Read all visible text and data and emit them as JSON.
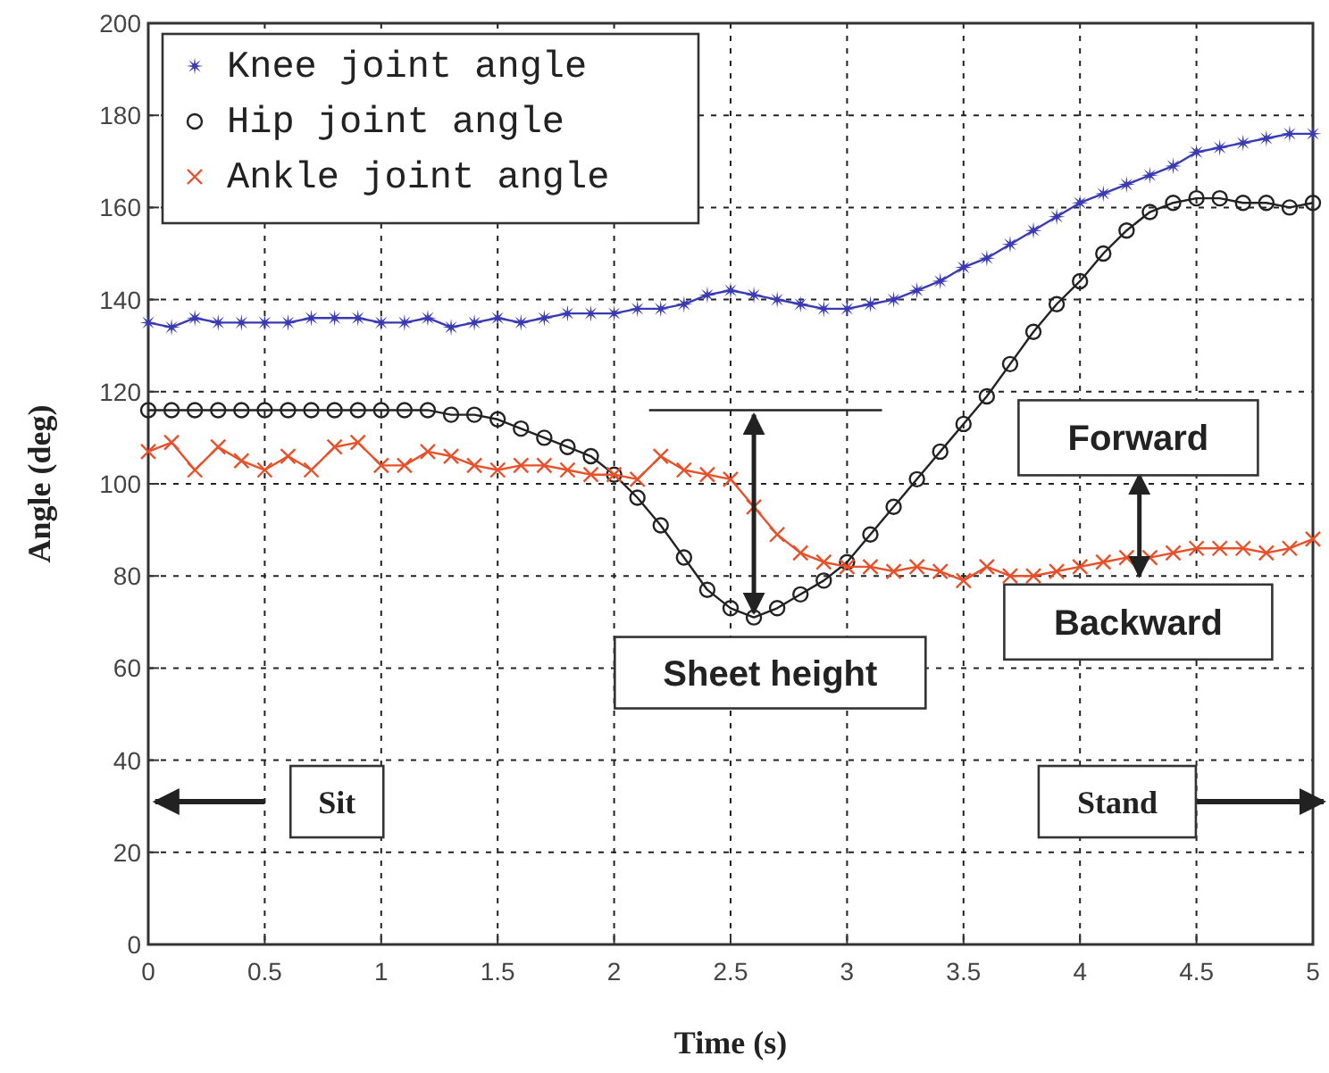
{
  "chart_data": {
    "type": "line",
    "xlabel": "Time (s)",
    "ylabel": "Angle (deg)",
    "xlim": [
      0,
      5
    ],
    "ylim": [
      0,
      200
    ],
    "xticks": [
      0,
      0.5,
      1,
      1.5,
      2,
      2.5,
      3,
      3.5,
      4,
      4.5,
      5
    ],
    "yticks": [
      0,
      20,
      40,
      60,
      80,
      100,
      120,
      140,
      160,
      180,
      200
    ],
    "grid": true,
    "legend": "top left",
    "x": [
      0,
      0.1,
      0.2,
      0.3,
      0.4,
      0.5,
      0.6,
      0.7,
      0.8,
      0.9,
      1,
      1.1,
      1.2,
      1.3,
      1.4,
      1.5,
      1.6,
      1.7,
      1.8,
      1.9,
      2,
      2.1,
      2.2,
      2.3,
      2.4,
      2.5,
      2.6,
      2.7,
      2.8,
      2.9,
      3,
      3.1,
      3.2,
      3.3,
      3.4,
      3.5,
      3.6,
      3.7,
      3.8,
      3.9,
      4,
      4.1,
      4.2,
      4.3,
      4.4,
      4.5,
      4.6,
      4.7,
      4.8,
      4.9,
      5
    ],
    "series": [
      {
        "name": "Knee joint angle",
        "color": "#3a3ab4",
        "marker": "star",
        "values": [
          135,
          134,
          136,
          135,
          135,
          135,
          135,
          136,
          136,
          136,
          135,
          135,
          136,
          134,
          135,
          136,
          135,
          136,
          137,
          137,
          137,
          138,
          138,
          139,
          141,
          142,
          141,
          140,
          139,
          138,
          138,
          139,
          140,
          142,
          144,
          147,
          149,
          152,
          155,
          158,
          161,
          163,
          165,
          167,
          169,
          172,
          173,
          174,
          175,
          176,
          176
        ]
      },
      {
        "name": "Hip joint angle",
        "color": "#222222",
        "marker": "circle",
        "values": [
          116,
          116,
          116,
          116,
          116,
          116,
          116,
          116,
          116,
          116,
          116,
          116,
          116,
          115,
          115,
          114,
          112,
          110,
          108,
          106,
          102,
          97,
          91,
          84,
          77,
          73,
          71,
          73,
          76,
          79,
          83,
          89,
          95,
          101,
          107,
          113,
          119,
          126,
          133,
          139,
          144,
          150,
          155,
          159,
          161,
          162,
          162,
          161,
          161,
          160,
          161
        ]
      },
      {
        "name": "Ankle joint angle",
        "color": "#e8502a",
        "marker": "cross",
        "values": [
          107,
          109,
          103,
          108,
          105,
          103,
          106,
          103,
          108,
          109,
          104,
          104,
          107,
          106,
          104,
          103,
          104,
          104,
          103,
          102,
          102,
          101,
          106,
          103,
          102,
          101,
          95,
          89,
          85,
          83,
          82,
          82,
          81,
          82,
          81,
          79,
          82,
          80,
          80,
          81,
          82,
          83,
          84,
          84,
          85,
          86,
          86,
          86,
          85,
          86,
          88
        ]
      }
    ],
    "annotations": [
      "Sheet height",
      "Forward",
      "Backward",
      "Sit",
      "Stand"
    ]
  }
}
